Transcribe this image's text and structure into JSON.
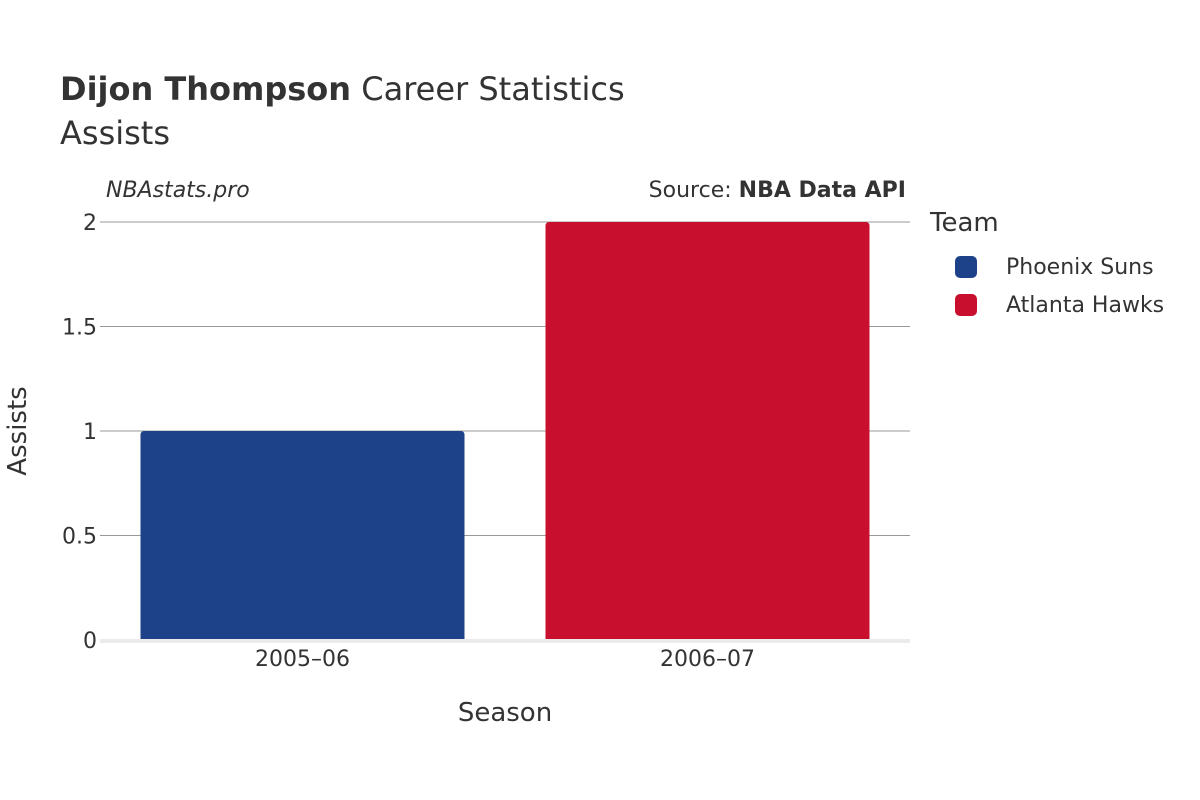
{
  "header": {
    "player_name": "Dijon Thompson",
    "title_suffix": "Career Statistics",
    "subtitle": "Assists"
  },
  "watermark": "NBAstats.pro",
  "source": {
    "prefix": "Source:",
    "name": "NBA Data API"
  },
  "legend": {
    "title": "Team",
    "items": [
      {
        "label": "Phoenix Suns",
        "color": "#1D428A"
      },
      {
        "label": "Atlanta Hawks",
        "color": "#C8102E"
      }
    ]
  },
  "chart_data": {
    "type": "bar",
    "categories": [
      "2005–06",
      "2006–07"
    ],
    "series": [
      {
        "name": "Phoenix Suns",
        "color": "#1D428A",
        "values": [
          1,
          null
        ]
      },
      {
        "name": "Atlanta Hawks",
        "color": "#C8102E",
        "values": [
          null,
          2
        ]
      }
    ],
    "xlabel": "Season",
    "ylabel": "Assists",
    "ylim": [
      0,
      2
    ],
    "yticks": [
      0,
      0.5,
      1,
      1.5,
      2
    ],
    "ytick_labels": [
      "0",
      "0.5",
      "1",
      "1.5",
      "2"
    ],
    "grid": true,
    "legend_position": "right"
  }
}
